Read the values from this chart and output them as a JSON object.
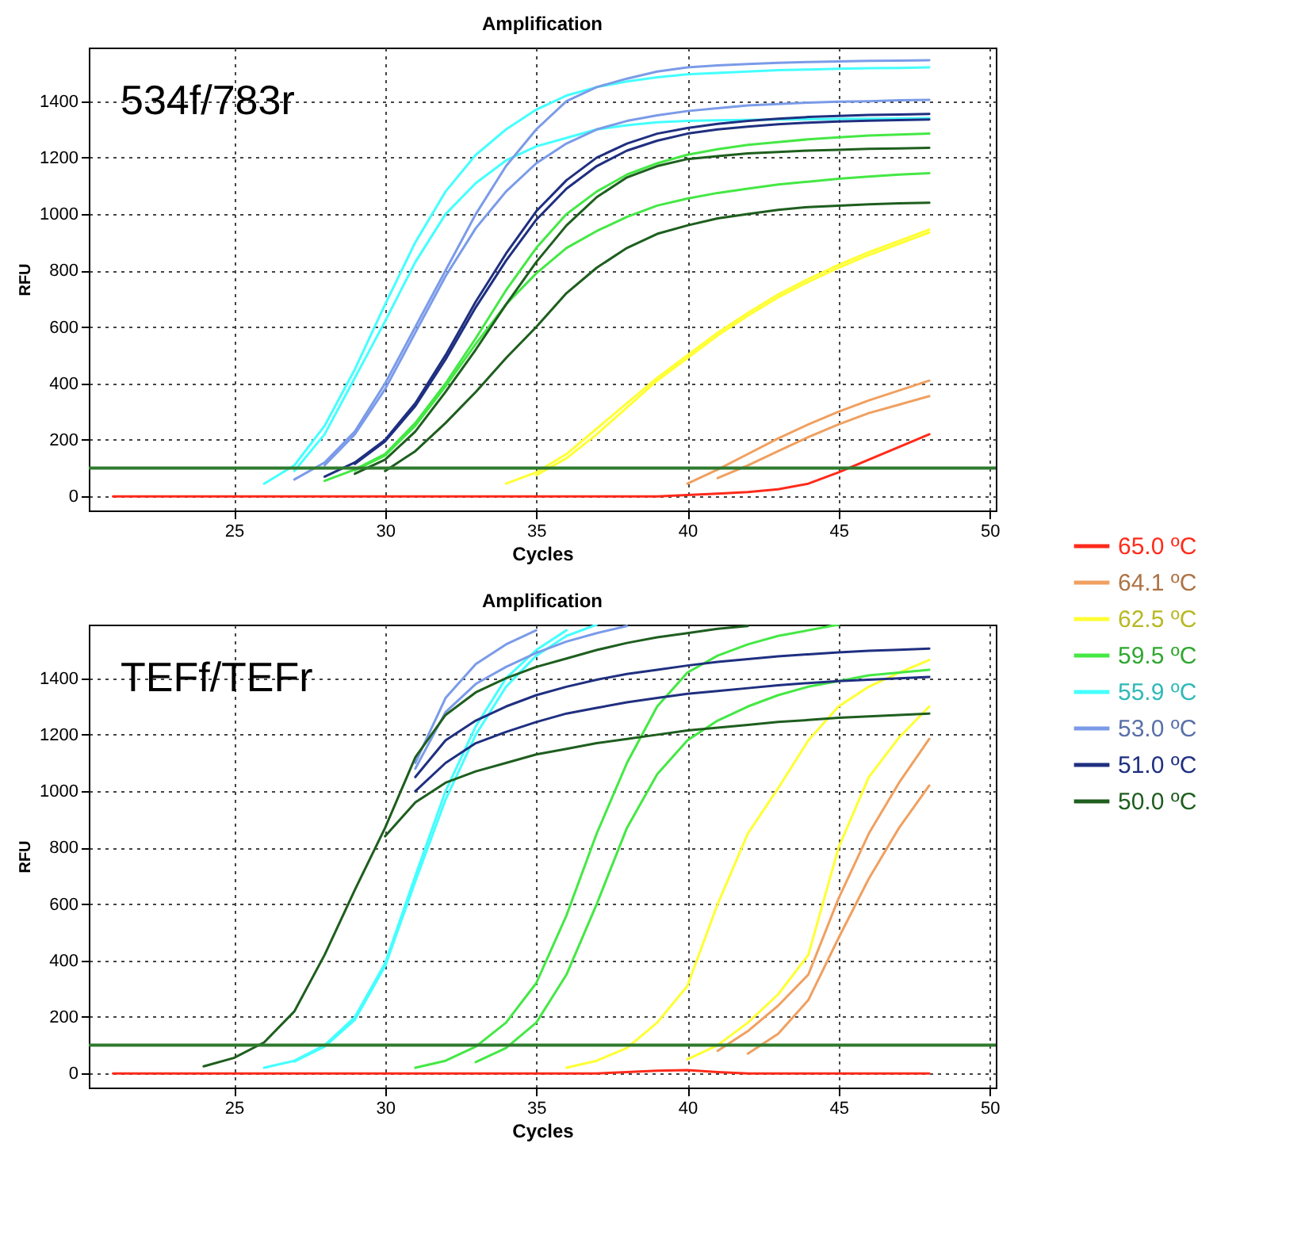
{
  "chart_data": [
    {
      "type": "line",
      "title": "Amplification",
      "xlabel": "Cycles",
      "ylabel": "RFU",
      "annotations": [
        "534f/783r"
      ],
      "xlim": [
        20.2,
        50.2
      ],
      "ylim": [
        -50,
        1590
      ],
      "xticks": [
        25,
        30,
        35,
        40,
        45,
        50
      ],
      "yticks": [
        0,
        200,
        400,
        600,
        800,
        1000,
        1200,
        1400
      ],
      "grid": true,
      "legend": "right",
      "line_style": "solid",
      "ref_lines": [
        {
          "axis": "y",
          "value": 100,
          "color": "#2e7a2e"
        }
      ],
      "x": [
        21,
        22,
        23,
        24,
        25,
        26,
        27,
        28,
        29,
        30,
        31,
        32,
        33,
        34,
        35,
        36,
        37,
        38,
        39,
        40,
        41,
        42,
        43,
        44,
        45,
        46,
        47,
        48
      ],
      "series": [
        {
          "name": "65.0 ºC",
          "color": "#ff2a1a",
          "values": [
            0,
            0,
            0,
            0,
            0,
            0,
            0,
            0,
            0,
            0,
            0,
            0,
            0,
            0,
            0,
            0,
            0,
            0,
            0,
            5,
            10,
            15,
            25,
            45,
            85,
            130,
            175,
            220
          ]
        },
        {
          "name": "64.1 ºC",
          "color": "#f0a060",
          "values": [
            null,
            null,
            null,
            null,
            null,
            null,
            null,
            null,
            null,
            null,
            null,
            null,
            null,
            null,
            null,
            null,
            null,
            null,
            null,
            45,
            95,
            150,
            205,
            255,
            300,
            340,
            375,
            410
          ]
        },
        {
          "color": "#f0a060",
          "values": [
            null,
            null,
            null,
            null,
            null,
            null,
            null,
            null,
            null,
            null,
            null,
            null,
            null,
            null,
            null,
            null,
            null,
            null,
            null,
            null,
            65,
            110,
            160,
            210,
            255,
            295,
            325,
            355
          ]
        },
        {
          "name": "62.5 ºC",
          "color": "#ffff33",
          "values": [
            null,
            null,
            null,
            null,
            null,
            null,
            null,
            null,
            null,
            null,
            null,
            null,
            null,
            45,
            85,
            150,
            240,
            330,
            420,
            500,
            580,
            650,
            715,
            770,
            820,
            865,
            905,
            945
          ]
        },
        {
          "color": "#ffff33",
          "values": [
            null,
            null,
            null,
            null,
            null,
            null,
            null,
            null,
            null,
            null,
            null,
            null,
            null,
            null,
            75,
            135,
            220,
            315,
            410,
            490,
            570,
            640,
            705,
            760,
            810,
            855,
            895,
            935
          ]
        },
        {
          "name": "59.5 ºC",
          "color": "#44e844",
          "values": [
            null,
            null,
            null,
            null,
            null,
            null,
            null,
            55,
            95,
            150,
            260,
            400,
            560,
            730,
            880,
            1000,
            1080,
            1140,
            1180,
            1210,
            1230,
            1245,
            1255,
            1265,
            1272,
            1278,
            1282,
            1285
          ]
        },
        {
          "color": "#44e844",
          "values": [
            null,
            null,
            null,
            null,
            null,
            null,
            null,
            null,
            92,
            145,
            250,
            390,
            540,
            680,
            790,
            880,
            940,
            990,
            1030,
            1055,
            1075,
            1090,
            1105,
            1115,
            1125,
            1133,
            1140,
            1145
          ]
        },
        {
          "name": "55.9 ºC",
          "color": "#44ffff",
          "values": [
            null,
            null,
            null,
            null,
            null,
            45,
            110,
            250,
            450,
            680,
            900,
            1080,
            1210,
            1300,
            1370,
            1420,
            1450,
            1470,
            1485,
            1495,
            1500,
            1505,
            1510,
            1512,
            1515,
            1517,
            1518,
            1520
          ]
        },
        {
          "color": "#44ffff",
          "values": [
            null,
            null,
            null,
            null,
            null,
            null,
            90,
            220,
            420,
            620,
            830,
            1000,
            1110,
            1190,
            1240,
            1270,
            1300,
            1315,
            1325,
            1330,
            1332,
            1334,
            1335,
            1336,
            1337,
            1338,
            1339,
            1340
          ]
        },
        {
          "name": "53.0 ºC",
          "color": "#7b9be8",
          "values": [
            null,
            null,
            null,
            null,
            null,
            null,
            60,
            120,
            230,
            400,
            600,
            800,
            1000,
            1170,
            1300,
            1400,
            1450,
            1480,
            1505,
            1520,
            1527,
            1532,
            1536,
            1539,
            1541,
            1543,
            1544,
            1545
          ]
        },
        {
          "color": "#7b9be8",
          "values": [
            null,
            null,
            null,
            null,
            null,
            null,
            null,
            110,
            220,
            380,
            580,
            780,
            950,
            1080,
            1180,
            1250,
            1300,
            1330,
            1350,
            1365,
            1375,
            1385,
            1390,
            1395,
            1398,
            1400,
            1403,
            1405
          ]
        },
        {
          "name": "51.0 ºC",
          "color": "#1f2f80",
          "values": [
            null,
            null,
            null,
            null,
            null,
            null,
            null,
            70,
            120,
            200,
            330,
            500,
            690,
            860,
            1010,
            1120,
            1200,
            1250,
            1285,
            1305,
            1320,
            1330,
            1338,
            1344,
            1348,
            1351,
            1353,
            1355
          ]
        },
        {
          "color": "#1f2f80",
          "values": [
            null,
            null,
            null,
            null,
            null,
            null,
            null,
            null,
            115,
            195,
            320,
            485,
            670,
            835,
            980,
            1090,
            1170,
            1225,
            1260,
            1285,
            1300,
            1310,
            1318,
            1324,
            1328,
            1331,
            1333,
            1335
          ]
        },
        {
          "name": "50.0 ºC",
          "color": "#1e5e1e",
          "values": [
            null,
            null,
            null,
            null,
            null,
            null,
            null,
            null,
            80,
            130,
            230,
            370,
            520,
            680,
            830,
            960,
            1060,
            1130,
            1170,
            1195,
            1205,
            1215,
            1220,
            1225,
            1228,
            1231,
            1233,
            1235
          ]
        },
        {
          "color": "#1e5e1e",
          "values": [
            null,
            null,
            null,
            null,
            null,
            null,
            null,
            null,
            null,
            90,
            160,
            260,
            370,
            490,
            600,
            720,
            810,
            880,
            930,
            960,
            985,
            1000,
            1015,
            1025,
            1030,
            1035,
            1038,
            1040
          ]
        }
      ]
    },
    {
      "type": "line",
      "title": "Amplification",
      "xlabel": "Cycles",
      "ylabel": "RFU",
      "annotations": [
        "TEFf/TEFr"
      ],
      "xlim": [
        20.2,
        50.2
      ],
      "ylim": [
        -50,
        1590
      ],
      "xticks": [
        25,
        30,
        35,
        40,
        45,
        50
      ],
      "yticks": [
        0,
        200,
        400,
        600,
        800,
        1000,
        1200,
        1400
      ],
      "grid": true,
      "line_style": "solid",
      "ref_lines": [
        {
          "axis": "y",
          "value": 100,
          "color": "#2e7a2e"
        }
      ],
      "x": [
        21,
        22,
        23,
        24,
        25,
        26,
        27,
        28,
        29,
        30,
        31,
        32,
        33,
        34,
        35,
        36,
        37,
        38,
        39,
        40,
        41,
        42,
        43,
        44,
        45,
        46,
        47,
        48
      ],
      "series": [
        {
          "color": "#ff2a1a",
          "values": [
            0,
            0,
            0,
            0,
            0,
            0,
            0,
            0,
            0,
            0,
            0,
            0,
            0,
            0,
            0,
            0,
            0,
            5,
            10,
            12,
            5,
            0,
            0,
            0,
            0,
            0,
            0,
            0
          ]
        },
        {
          "color": "#f0a060",
          "values": [
            null,
            null,
            null,
            null,
            null,
            null,
            null,
            null,
            null,
            null,
            null,
            null,
            null,
            null,
            null,
            null,
            null,
            null,
            null,
            null,
            80,
            150,
            240,
            350,
            620,
            850,
            1030,
            1185
          ]
        },
        {
          "color": "#f0a060",
          "values": [
            null,
            null,
            null,
            null,
            null,
            null,
            null,
            null,
            null,
            null,
            null,
            null,
            null,
            null,
            null,
            null,
            null,
            null,
            null,
            null,
            null,
            70,
            140,
            260,
            480,
            690,
            870,
            1020
          ]
        },
        {
          "color": "#ffff33",
          "values": [
            null,
            null,
            null,
            null,
            null,
            null,
            null,
            null,
            null,
            null,
            null,
            null,
            null,
            null,
            null,
            20,
            45,
            90,
            180,
            310,
            600,
            850,
            1010,
            1180,
            1300,
            1370,
            1420,
            1465
          ]
        },
        {
          "color": "#ffff33",
          "values": [
            null,
            null,
            null,
            null,
            null,
            null,
            null,
            null,
            null,
            null,
            null,
            null,
            null,
            null,
            null,
            null,
            null,
            null,
            null,
            50,
            100,
            180,
            280,
            420,
            800,
            1050,
            1190,
            1300
          ]
        },
        {
          "color": "#44e844",
          "values": [
            null,
            null,
            null,
            null,
            null,
            null,
            null,
            null,
            null,
            null,
            20,
            45,
            95,
            180,
            320,
            560,
            850,
            1100,
            1300,
            1420,
            1480,
            1520,
            1550,
            1570,
            1590,
            null,
            null,
            null
          ]
        },
        {
          "color": "#44e844",
          "values": [
            null,
            null,
            null,
            null,
            null,
            null,
            null,
            null,
            null,
            null,
            null,
            null,
            40,
            90,
            180,
            350,
            600,
            870,
            1060,
            1180,
            1250,
            1300,
            1340,
            1370,
            1390,
            1410,
            1420,
            1430
          ]
        },
        {
          "color": "#44ffff",
          "values": [
            null,
            null,
            null,
            null,
            null,
            20,
            45,
            100,
            200,
            390,
            700,
            1000,
            1230,
            1400,
            1500,
            1570,
            null,
            null,
            null,
            null,
            null,
            null,
            null,
            null,
            null,
            null,
            null,
            null
          ]
        },
        {
          "color": "#44ffff",
          "values": [
            null,
            null,
            null,
            null,
            null,
            null,
            42,
            95,
            190,
            380,
            680,
            970,
            1200,
            1370,
            1480,
            1550,
            1590,
            null,
            null,
            null,
            null,
            null,
            null,
            null,
            null,
            null,
            null,
            null
          ]
        },
        {
          "color": "#7b9be8",
          "values": [
            null,
            null,
            null,
            null,
            null,
            null,
            null,
            null,
            null,
            null,
            1100,
            1330,
            1450,
            1520,
            1570,
            null,
            null,
            null,
            null,
            null,
            null,
            null,
            null,
            null,
            null,
            null,
            null,
            null
          ]
        },
        {
          "color": "#7b9be8",
          "values": [
            null,
            null,
            null,
            null,
            null,
            null,
            null,
            null,
            null,
            null,
            1080,
            1280,
            1380,
            1440,
            1490,
            1530,
            1560,
            1585,
            null,
            null,
            null,
            null,
            null,
            null,
            null,
            null,
            null,
            null
          ]
        },
        {
          "color": "#1f2f80",
          "values": [
            null,
            null,
            null,
            null,
            null,
            null,
            null,
            null,
            null,
            null,
            1050,
            1180,
            1250,
            1300,
            1340,
            1370,
            1395,
            1415,
            1430,
            1445,
            1458,
            1468,
            1478,
            1485,
            1492,
            1497,
            1501,
            1505
          ]
        },
        {
          "color": "#1f2f80",
          "values": [
            null,
            null,
            null,
            null,
            null,
            null,
            null,
            null,
            null,
            null,
            1000,
            1100,
            1170,
            1210,
            1245,
            1275,
            1295,
            1315,
            1330,
            1345,
            1355,
            1365,
            1375,
            1383,
            1390,
            1395,
            1400,
            1405
          ]
        },
        {
          "color": "#1e5e1e",
          "values": [
            null,
            null,
            null,
            25,
            55,
            110,
            220,
            420,
            650,
            870,
            1120,
            1270,
            1350,
            1400,
            1440,
            1470,
            1500,
            1525,
            1545,
            1560,
            1575,
            1585,
            null,
            null,
            null,
            null,
            null,
            null
          ]
        },
        {
          "color": "#1e5e1e",
          "values": [
            null,
            null,
            null,
            null,
            null,
            null,
            null,
            null,
            null,
            840,
            960,
            1030,
            1070,
            1100,
            1130,
            1150,
            1170,
            1185,
            1200,
            1215,
            1225,
            1235,
            1245,
            1252,
            1260,
            1265,
            1270,
            1275
          ]
        }
      ]
    }
  ]
}
